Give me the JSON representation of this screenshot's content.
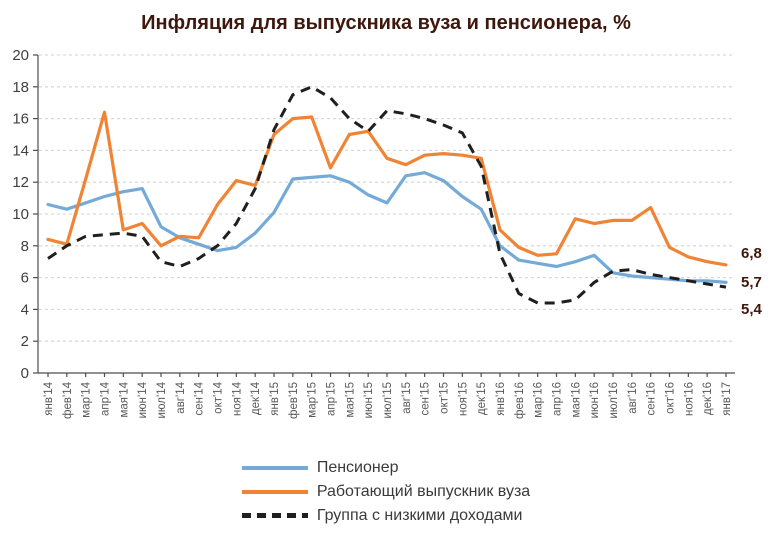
{
  "title": "Инфляция для выпускника вуза и пенсионера, %",
  "colors": {
    "title_text": "#3e180d",
    "end_label_text": "#3e180d",
    "pensioner_blue": "#74aad8",
    "graduate_orange": "#f08434",
    "low_income_black": "#1f1f1f",
    "axis_text": "#595959",
    "grid": "#d9d9d9"
  },
  "chart_data": {
    "type": "line",
    "title": "Инфляция для выпускника вуза и пенсионера, %",
    "xlabel": "",
    "ylabel": "",
    "ylim": [
      0,
      20
    ],
    "y_ticks": [
      0,
      2,
      4,
      6,
      8,
      10,
      12,
      14,
      16,
      18,
      20
    ],
    "grid": "horizontal-dashed",
    "legend_position": "bottom",
    "x_labels": [
      "янв'14",
      "фев'14",
      "мар'14",
      "апр'14",
      "мая'14",
      "июн'14",
      "июл'14",
      "авг'14",
      "сен'14",
      "окт'14",
      "ноя'14",
      "дек'14",
      "янв'15",
      "фев'15",
      "мар'15",
      "апр'15",
      "мая'15",
      "июн'15",
      "июл'15",
      "авг'15",
      "сен'15",
      "окт'15",
      "ноя'15",
      "дек'15",
      "янв'16",
      "фев'16",
      "мар'16",
      "апр'16",
      "мая'16",
      "июн'16",
      "июл'16",
      "авг'16",
      "сен'16",
      "окт'16",
      "ноя'16",
      "дек'16",
      "янв'17"
    ],
    "series": [
      {
        "name": "Пенсионер",
        "color": "#74aad8",
        "style": "solid",
        "values": [
          10.6,
          10.3,
          10.7,
          11.1,
          11.4,
          11.6,
          9.2,
          8.5,
          8.1,
          7.7,
          7.9,
          8.8,
          10.1,
          12.2,
          12.3,
          12.4,
          12.0,
          11.2,
          10.7,
          12.4,
          12.6,
          12.1,
          11.1,
          10.3,
          8.0,
          7.1,
          6.9,
          6.7,
          7.0,
          7.4,
          6.3,
          6.1,
          6.0,
          5.9,
          5.8,
          5.8,
          5.7
        ]
      },
      {
        "name": "Работающий выпускник вуза",
        "color": "#f08434",
        "style": "solid",
        "values": [
          8.4,
          8.1,
          12.2,
          16.4,
          9.0,
          9.4,
          8.0,
          8.6,
          8.5,
          10.6,
          12.1,
          11.8,
          15.0,
          16.0,
          16.1,
          12.9,
          15.0,
          15.2,
          13.5,
          13.1,
          13.7,
          13.8,
          13.7,
          13.5,
          9.0,
          7.9,
          7.4,
          7.5,
          9.7,
          9.4,
          9.6,
          9.6,
          10.4,
          7.9,
          7.3,
          7.0,
          6.8
        ]
      },
      {
        "name": "Группа с низкими доходами",
        "color": "#1f1f1f",
        "style": "dashed",
        "values": [
          7.2,
          8.0,
          8.6,
          8.7,
          8.8,
          8.6,
          7.0,
          6.7,
          7.2,
          8.0,
          9.4,
          11.6,
          15.3,
          17.5,
          18.0,
          17.3,
          16.0,
          15.2,
          16.5,
          16.3,
          16.0,
          15.6,
          15.1,
          13.0,
          7.5,
          5.0,
          4.4,
          4.4,
          4.6,
          5.7,
          6.4,
          6.5,
          6.2,
          6.0,
          5.8,
          5.6,
          5.4
        ]
      }
    ],
    "end_labels": [
      "6,8",
      "5,7",
      "5,4"
    ]
  }
}
